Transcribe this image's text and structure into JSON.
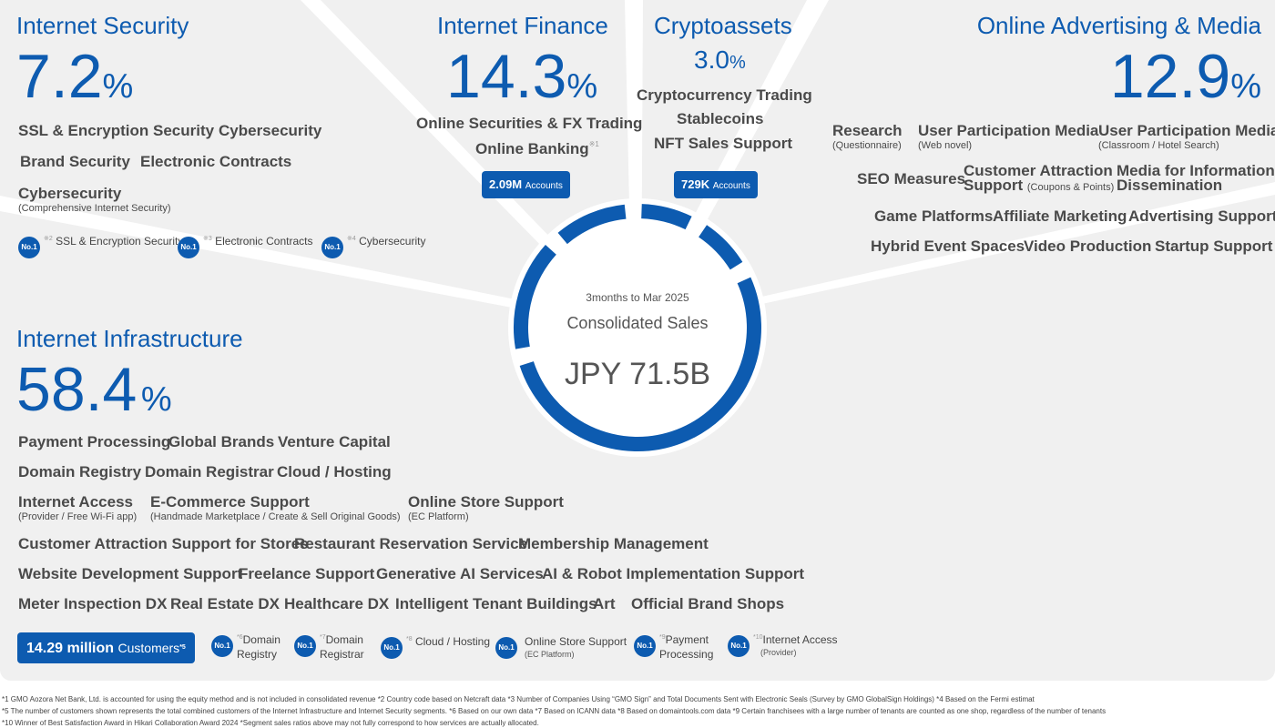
{
  "center": {
    "period": "3months to Mar 2025",
    "label": "Consolidated Sales",
    "value": "JPY 71.5B",
    "ring_color": "#0d5bb0"
  },
  "security": {
    "title": "Internet Security",
    "pct": "7.2",
    "unit": "%",
    "services": [
      {
        "label": "SSL & Encryption Security"
      },
      {
        "label": "Cybersecurity"
      },
      {
        "label": "Brand Security"
      },
      {
        "label": "Electronic Contracts"
      },
      {
        "label": "Cybersecurity",
        "sub": "(Comprehensive Internet Security)"
      }
    ],
    "no1": [
      {
        "badge": "No.1",
        "mark": "※2",
        "label": "SSL & Encryption Security"
      },
      {
        "badge": "No.1",
        "mark": "※3",
        "label": "Electronic Contracts"
      },
      {
        "badge": "No.1",
        "mark": "※4",
        "label": "Cybersecurity"
      }
    ]
  },
  "finance": {
    "title": "Internet Finance",
    "pct": "14.3",
    "unit": "%",
    "services": [
      {
        "label": "Online Securities & FX Trading"
      },
      {
        "label": "Online Banking",
        "mark": "※1"
      }
    ],
    "badge": {
      "value": "2.09M",
      "unit": "Accounts"
    }
  },
  "crypto": {
    "title": "Cryptoassets",
    "pct": "3.0",
    "unit": "%",
    "services": [
      {
        "label": "Cryptocurrency Trading"
      },
      {
        "label": "Stablecoins"
      },
      {
        "label": "NFT Sales Support"
      }
    ],
    "badge": {
      "value": "729K",
      "unit": "Accounts"
    }
  },
  "advertising": {
    "title": "Online Advertising & Media",
    "pct": "12.9",
    "unit": "%",
    "services": [
      {
        "label": "Research",
        "sub": "(Questionnaire)"
      },
      {
        "label": "User Participation Media",
        "sub": "(Web novel)"
      },
      {
        "label": "User Participation Media",
        "sub": "(Classroom / Hotel Search)"
      },
      {
        "label": "SEO Measures"
      },
      {
        "label": "Customer Attraction",
        "label2": "Support",
        "sub": "(Coupons & Points)"
      },
      {
        "label": "Media for Information",
        "label2": "Dissemination"
      },
      {
        "label": "Game Platforms"
      },
      {
        "label": "Affiliate Marketing"
      },
      {
        "label": "Advertising Support"
      },
      {
        "label": "Hybrid Event Spaces"
      },
      {
        "label": "Video Production"
      },
      {
        "label": "Startup Support"
      }
    ]
  },
  "infrastructure": {
    "title": "Internet Infrastructure",
    "pct": "58.4",
    "unit": "%",
    "services": [
      {
        "label": "Payment Processing"
      },
      {
        "label": "Global Brands"
      },
      {
        "label": "Venture Capital"
      },
      {
        "label": "Domain Registry"
      },
      {
        "label": "Domain Registrar"
      },
      {
        "label": "Cloud / Hosting"
      },
      {
        "label": "Internet Access",
        "sub": "(Provider / Free Wi-Fi app)"
      },
      {
        "label": "E-Commerce Support",
        "sub": "(Handmade Marketplace / Create & Sell Original Goods)"
      },
      {
        "label": "Online Store Support",
        "sub": "(EC Platform)"
      },
      {
        "label": "Customer Attraction Support for Stores"
      },
      {
        "label": "Restaurant Reservation Service"
      },
      {
        "label": "Membership Management"
      },
      {
        "label": "Website Development Support"
      },
      {
        "label": "Freelance Support"
      },
      {
        "label": "Generative AI Services"
      },
      {
        "label": "AI & Robot Implementation Support"
      },
      {
        "label": "Meter Inspection DX"
      },
      {
        "label": "Real Estate DX"
      },
      {
        "label": "Healthcare DX"
      },
      {
        "label": "Intelligent Tenant Buildings"
      },
      {
        "label": "Art"
      },
      {
        "label": "Official Brand Shops"
      }
    ],
    "badge": {
      "value": "14.29 million",
      "unit": "Customers",
      "mark": "*5"
    },
    "no1": [
      {
        "badge": "No.1",
        "mark": "*6",
        "label": "Domain",
        "label2": "Registry"
      },
      {
        "badge": "No.1",
        "mark": "*7",
        "label": "Domain",
        "label2": "Registrar"
      },
      {
        "badge": "No.1",
        "mark": "*8",
        "label": "Cloud / Hosting"
      },
      {
        "badge": "No.1",
        "mark": "",
        "label": "Online Store Support",
        "label2": "(EC Platform)"
      },
      {
        "badge": "No.1",
        "mark": "*9",
        "label": "Payment",
        "label2": "Processing"
      },
      {
        "badge": "No.1",
        "mark": "*10",
        "label": "Internet Access",
        "label2": "(Provider)"
      }
    ]
  },
  "footnotes": [
    "*1 GMO Aozora Net Bank, Ltd. is accounted for using the equity method and is not included in consolidated revenue    *2 Country code based on Netcraft data    *3 Number of Companies Using “GMO Sign” and Total Documents Sent with Electronic Seals (Survey by GMO GlobalSign Holdings)    *4 Based on the Fermi estimat",
    "*5 The number of customers shown represents the total combined customers of the Internet Infrastructure and Internet Security segments.    *6 Based on our own data    *7 Based on ICANN data    *8 Based on domaintools.com data    *9  Certain franchisees with a large number of tenants are counted as one shop, regardless of the number of tenants",
    "*10 Winner of Best Satisfaction Award in Hikari Collaboration Award 2024    *Segment sales ratios above may not fully correspond to how services are actually allocated."
  ]
}
